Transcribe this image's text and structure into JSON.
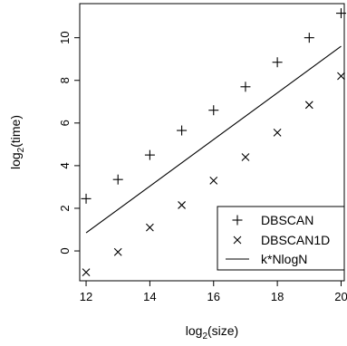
{
  "chart_data": {
    "type": "scatter",
    "xlabel": {
      "main": "log",
      "sub": "2",
      "tail": "(size)"
    },
    "ylabel": {
      "main": "log",
      "sub": "2",
      "tail": "(time)"
    },
    "xlim": [
      11.8,
      20.1
    ],
    "ylim": [
      -1.4,
      11.6
    ],
    "x_ticks": [
      12,
      14,
      16,
      18,
      20
    ],
    "x_tick_labels": [
      "12",
      "14",
      "16",
      "18",
      "20"
    ],
    "y_ticks": [
      0,
      2,
      4,
      6,
      8,
      10
    ],
    "y_tick_labels": [
      "0",
      "2",
      "4",
      "6",
      "8",
      "10"
    ],
    "grid": false,
    "legend_position": "bottom-right",
    "series": [
      {
        "name": "DBSCAN",
        "marker": "plus",
        "x": [
          12,
          13,
          14,
          15,
          16,
          17,
          18,
          19,
          20
        ],
        "values": [
          2.45,
          3.35,
          4.5,
          5.65,
          6.6,
          7.7,
          8.85,
          10.0,
          11.15
        ]
      },
      {
        "name": "DBSCAN1D",
        "marker": "cross",
        "x": [
          12,
          13,
          14,
          15,
          16,
          17,
          18,
          19,
          20
        ],
        "values": [
          -1.0,
          -0.05,
          1.1,
          2.15,
          3.3,
          4.4,
          5.55,
          6.85,
          8.2
        ]
      },
      {
        "name": "k*NlogN",
        "marker": "line",
        "x": [
          12,
          20
        ],
        "values": [
          0.85,
          9.6
        ]
      }
    ]
  }
}
